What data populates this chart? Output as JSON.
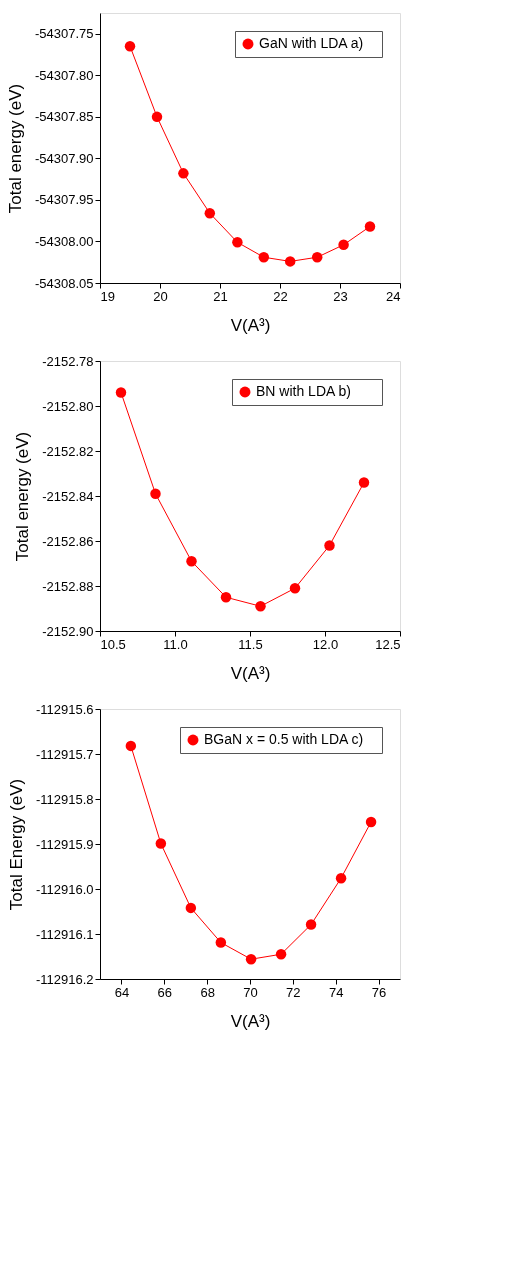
{
  "chart_data": [
    {
      "type": "line",
      "xlabel": "V(A³)",
      "ylabel": "Total energy (eV)",
      "marker": "circle",
      "legend": "top right",
      "grid": false,
      "xlim": [
        19,
        24
      ],
      "xticks": [
        19,
        20,
        21,
        22,
        23,
        24
      ],
      "ylim": [
        -54308.05,
        -54307.725
      ],
      "yticks": [
        -54307.75,
        {
          "value": -54307.8,
          "label": "-54307.80"
        },
        -54307.85,
        {
          "value": -54307.9,
          "label": "-54307.90"
        },
        -54307.95,
        {
          "value": -54308.0,
          "label": "-54308.00"
        },
        -54308.05
      ],
      "series": [
        {
          "name": "GaN with LDA    a)",
          "color": "#ff0000",
          "x": [
            19.5,
            19.95,
            20.39,
            20.83,
            21.29,
            21.73,
            22.17,
            22.62,
            23.06,
            23.5
          ],
          "values": [
            -54307.765,
            -54307.85,
            -54307.918,
            -54307.966,
            -54308.001,
            -54308.019,
            -54308.024,
            -54308.019,
            -54308.004,
            -54307.982
          ]
        }
      ]
    },
    {
      "type": "line",
      "xlabel": "V(A³)",
      "ylabel": "Total energy (eV)",
      "marker": "circle",
      "legend": "top right",
      "grid": false,
      "xlim": [
        10.5,
        12.5
      ],
      "xticks": [
        10.5,
        {
          "value": 11,
          "label": "11.0"
        },
        11.5,
        {
          "value": 12,
          "label": "12.0"
        },
        12.5
      ],
      "ylim": [
        -2152.9,
        -2152.78
      ],
      "yticks": [
        -2152.78,
        {
          "value": -2152.8,
          "label": "-2152.80"
        },
        -2152.82,
        -2152.84,
        -2152.86,
        -2152.88,
        {
          "value": -2152.9,
          "label": "-2152.90"
        }
      ],
      "series": [
        {
          "name": "BN with LDA       b)",
          "color": "#ff0000",
          "x": [
            10.64,
            10.87,
            11.11,
            11.34,
            11.57,
            11.8,
            12.03,
            12.26
          ],
          "values": [
            -2152.794,
            -2152.839,
            -2152.869,
            -2152.885,
            -2152.889,
            -2152.881,
            -2152.862,
            -2152.834
          ]
        }
      ]
    },
    {
      "type": "line",
      "xlabel": "V(A³)",
      "ylabel": "Total Energy (eV)",
      "marker": "circle",
      "legend": "top right",
      "grid": false,
      "xlim": [
        63,
        77
      ],
      "xticks": [
        64,
        66,
        68,
        70,
        72,
        74,
        76
      ],
      "ylim": [
        -112916.2,
        -112915.6
      ],
      "yticks": [
        -112915.6,
        -112915.7,
        -112915.8,
        -112915.9,
        {
          "value": -112916.0,
          "label": "-112916.0"
        },
        -112916.1,
        -112916.2
      ],
      "series": [
        {
          "name": "BGaN  x = 0.5 with LDA   c)",
          "color": "#ff0000",
          "x": [
            64.44,
            65.84,
            67.24,
            68.64,
            70.05,
            71.45,
            72.85,
            74.25,
            75.65
          ],
          "values": [
            -112915.682,
            -112915.899,
            -112916.042,
            -112916.119,
            -112916.156,
            -112916.145,
            -112916.079,
            -112915.976,
            -112915.851
          ]
        }
      ]
    }
  ]
}
